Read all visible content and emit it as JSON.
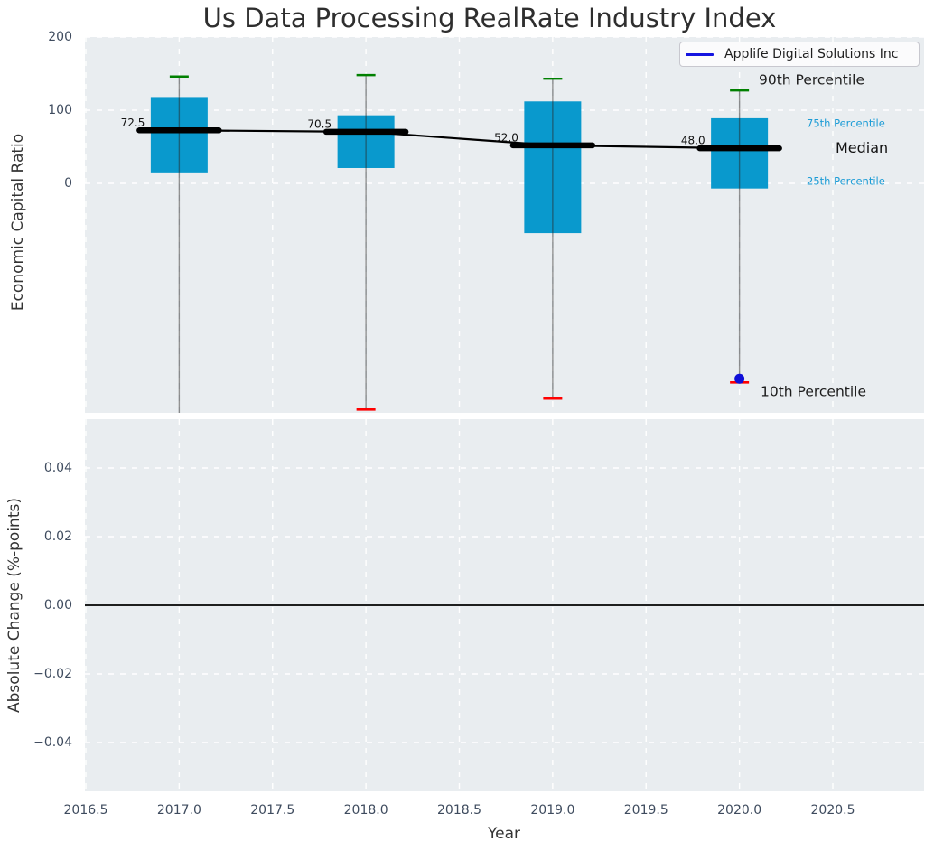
{
  "title": "Us Data Processing RealRate Industry Index",
  "legend": {
    "series_label": "Applife Digital Solutions Inc"
  },
  "annotations": {
    "p90": "90th Percentile",
    "p75": "75th Percentile",
    "median": "Median",
    "p25": "25th Percentile",
    "p10": "10th Percentile"
  },
  "colors": {
    "box_fill": "#0999cd",
    "cap_top": "#008000",
    "cap_bottom": "#ff0000",
    "median_line": "#000000",
    "company_line": "#1414e0",
    "company_point": "#0f0fd8",
    "percentile_label": "#1c9cd6",
    "tick_label": "#3e4b5e",
    "panel_bg": "#e9edf0",
    "grid": "#ffffff",
    "whisker": "rgba(40,40,40,0.5)",
    "zero_line": "#000000"
  },
  "chart_data": {
    "type": "boxplot+line",
    "title": "Us Data Processing RealRate Industry Index",
    "xlabel": "Year",
    "xticks": [
      2016.5,
      2017.0,
      2017.5,
      2018.0,
      2018.5,
      2019.0,
      2019.5,
      2020.0,
      2020.5
    ],
    "xtick_labels": [
      "2016.5",
      "2017.0",
      "2017.5",
      "2018.0",
      "2018.5",
      "2019.0",
      "2019.5",
      "2020.0",
      "2020.5"
    ],
    "xlim": [
      2016.495,
      2020.99
    ],
    "panels": [
      {
        "ylabel": "Economic Capital Ratio",
        "yticks": [
          200,
          100,
          0
        ],
        "ytick_labels": [
          "200",
          "100",
          "0"
        ],
        "ylim": [
          -314,
          200
        ],
        "grid": true,
        "legend_position": "upper right",
        "series_name": "Applife Digital Solutions Inc",
        "boxes": [
          {
            "year": 2017,
            "p90": 146,
            "p75": 118,
            "median": 72.5,
            "p25": 15,
            "p10": null,
            "p10_clipped": true,
            "median_label": "72.5"
          },
          {
            "year": 2018,
            "p90": 148,
            "p75": 93,
            "median": 70.5,
            "p25": 21,
            "p10": -309,
            "p10_clipped": false,
            "median_label": "70.5"
          },
          {
            "year": 2019,
            "p90": 143,
            "p75": 112,
            "median": 52.0,
            "p25": -68,
            "p10": -294,
            "p10_clipped": false,
            "median_label": "52.0"
          },
          {
            "year": 2020,
            "p90": 127,
            "p75": 89,
            "median": 48.0,
            "p25": -7,
            "p10": -272,
            "p10_clipped": false,
            "median_label": "48.0"
          }
        ],
        "company_point": {
          "year": 2020,
          "value": -267
        }
      },
      {
        "ylabel": "Absolute Change (%-points)",
        "yticks": [
          0.04,
          0.02,
          0.0,
          -0.02,
          -0.04
        ],
        "ytick_labels": [
          "0.04",
          "0.02",
          "0.00",
          "−0.02",
          "−0.04"
        ],
        "ylim": [
          -0.054,
          0.054
        ],
        "grid": true,
        "zero_line": 0.0
      }
    ]
  }
}
